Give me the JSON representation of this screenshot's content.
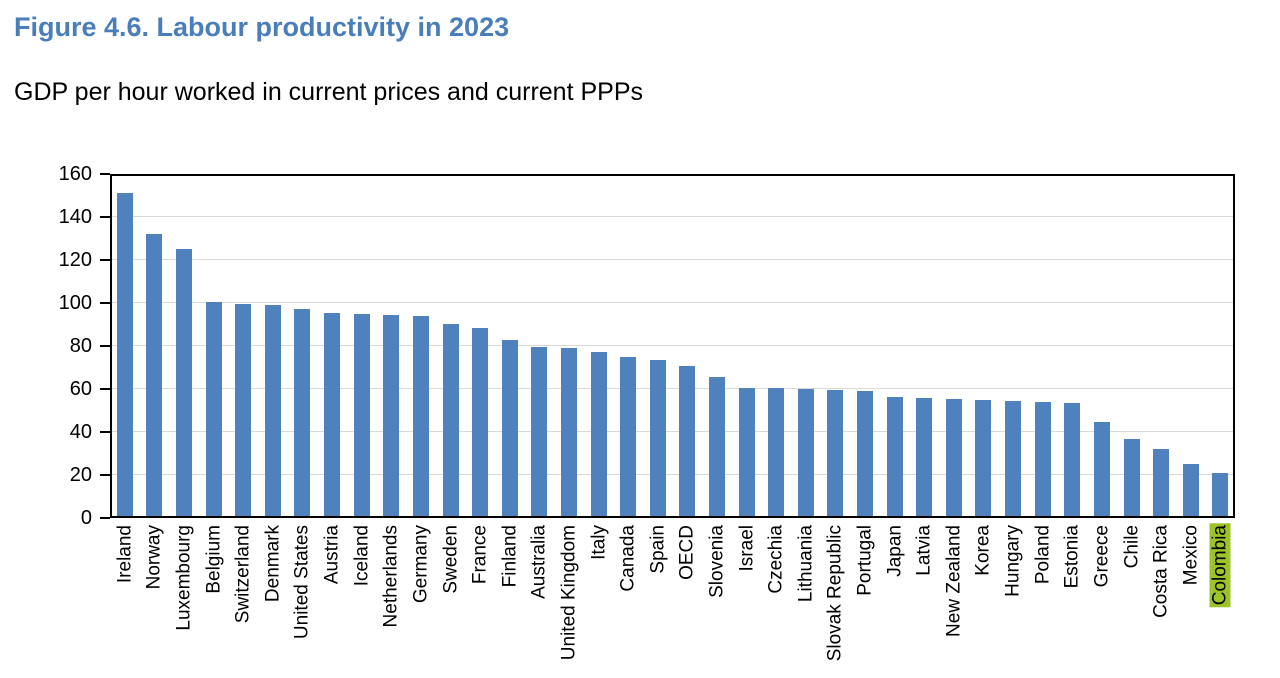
{
  "header": {
    "title": "Figure 4.6. Labour productivity in 2023",
    "subtitle": "GDP per hour worked in current prices and current PPPs"
  },
  "colors": {
    "title_text": "#4a7eba",
    "bar": "#4f81bd",
    "gridline": "#d9d9d9",
    "axis": "#000000",
    "highlight_label_bg": "#9cc327"
  },
  "chart_data": {
    "type": "bar",
    "title": "Figure 4.6. Labour productivity in 2023",
    "subtitle": "GDP per hour worked in current prices and current PPPs",
    "xlabel": "",
    "ylabel": "",
    "ylim": [
      0,
      160
    ],
    "yticks": [
      0,
      20,
      40,
      60,
      80,
      100,
      120,
      140,
      160
    ],
    "grid": true,
    "legend": false,
    "bar_color": "#4f81bd",
    "highlighted_category": "Colombia",
    "highlight_style": "yellow-green label background",
    "categories": [
      "Ireland",
      "Norway",
      "Luxembourg",
      "Belgium",
      "Switzerland",
      "Denmark",
      "United States",
      "Austria",
      "Iceland",
      "Netherlands",
      "Germany",
      "Sweden",
      "France",
      "Finland",
      "Australia",
      "United Kingdom",
      "Italy",
      "Canada",
      "Spain",
      "OECD",
      "Slovenia",
      "Israel",
      "Czechia",
      "Lithuania",
      "Slovak Republic",
      "Portugal",
      "Japan",
      "Latvia",
      "New Zealand",
      "Korea",
      "Hungary",
      "Poland",
      "Estonia",
      "Greece",
      "Chile",
      "Costa Rica",
      "Mexico",
      "Colombia"
    ],
    "values": [
      151.2,
      132.2,
      124.9,
      100.5,
      99.4,
      99.1,
      97.1,
      95.3,
      94.8,
      94.5,
      94.1,
      90.4,
      88.2,
      82.8,
      79.5,
      78.9,
      77.3,
      74.7,
      73.5,
      70.9,
      65.5,
      60.5,
      60.3,
      60.1,
      59.7,
      59.2,
      56.4,
      55.9,
      55.3,
      54.8,
      54.3,
      54.0,
      53.4,
      44.8,
      36.6,
      32.1,
      25.1,
      21.1
    ]
  }
}
